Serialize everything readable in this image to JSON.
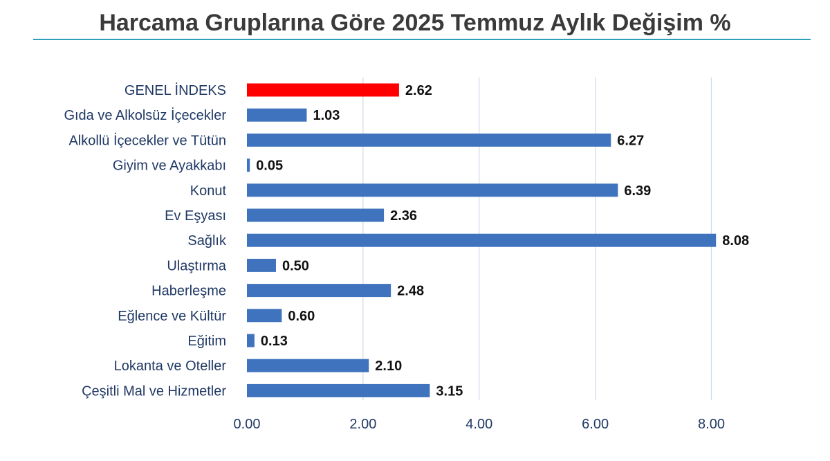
{
  "chart_data": {
    "type": "bar",
    "orientation": "horizontal",
    "title": "Harcama Gruplarına Göre 2025 Temmuz Aylık Değişim %",
    "categories": [
      "GENEL İNDEKS",
      "Gıda ve Alkolsüz İçecekler",
      "Alkollü İçecekler ve Tütün",
      "Giyim ve Ayakkabı",
      "Konut",
      "Ev Eşyası",
      "Sağlık",
      "Ulaştırma",
      "Haberleşme",
      "Eğlence ve Kültür",
      "Eğitim",
      "Lokanta ve Oteller",
      "Çeşitli Mal ve Hizmetler"
    ],
    "values": [
      2.62,
      1.03,
      6.27,
      0.05,
      6.39,
      2.36,
      8.08,
      0.5,
      2.48,
      0.6,
      0.13,
      2.1,
      3.15
    ],
    "value_labels": [
      "2.62",
      "1.03",
      "6.27",
      "0.05",
      "6.39",
      "2.36",
      "8.08",
      "0.50",
      "2.48",
      "0.60",
      "0.13",
      "2.10",
      "3.15"
    ],
    "highlight_index": 0,
    "xlim": [
      0,
      9.4
    ],
    "xticks": [
      0,
      2,
      4,
      6,
      8
    ],
    "xtick_labels": [
      "0.00",
      "2.00",
      "4.00",
      "6.00",
      "8.00"
    ],
    "xlabel": "",
    "ylabel": "",
    "grid": "vertical",
    "legend": "none",
    "colors": {
      "bar": "#3f73be",
      "highlight_bar": "#ff0000",
      "highlight_label": "#e8201c",
      "grid": "#d0d9e8",
      "title_rule": "#2a9fb8"
    }
  }
}
